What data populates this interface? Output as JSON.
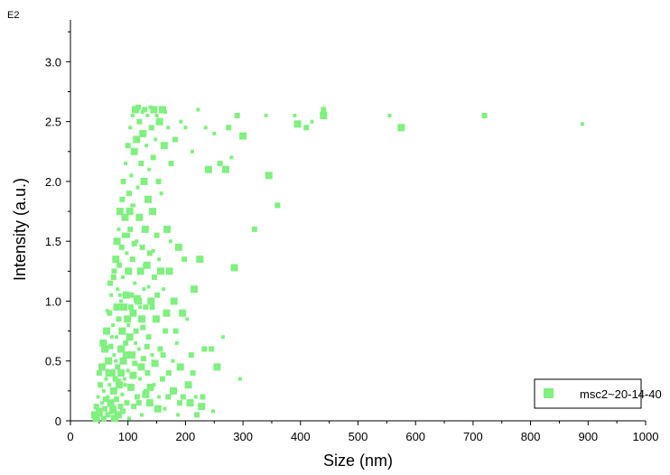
{
  "chart_data": {
    "type": "scatter",
    "xlabel": "Size (nm)",
    "ylabel": "Intensity (a.u.)",
    "y_exponent_label": "E2",
    "xlim": [
      0,
      1000
    ],
    "ylim": [
      0,
      3.35
    ],
    "x_ticks": [
      "0",
      "100",
      "200",
      "300",
      "400",
      "500",
      "600",
      "700",
      "800",
      "900",
      "1000"
    ],
    "x_tick_values": [
      0,
      100,
      200,
      300,
      400,
      500,
      600,
      700,
      800,
      900,
      1000
    ],
    "y_ticks": [
      "0",
      "0.5",
      "1.0",
      "1.5",
      "2.0",
      "2.5",
      "3.0"
    ],
    "y_tick_values": [
      0,
      0.5,
      1.0,
      1.5,
      2.0,
      2.5,
      3.0
    ],
    "grid": false,
    "legend_position": "bottom-right",
    "series": [
      {
        "name": "msc2~20-14-40",
        "color": "#80f080",
        "marker": "square",
        "points": [
          [
            42,
            0.05
          ],
          [
            45,
            0.12
          ],
          [
            48,
            0.2
          ],
          [
            50,
            0.08
          ],
          [
            52,
            0.3
          ],
          [
            55,
            0.15
          ],
          [
            55,
            0.45
          ],
          [
            58,
            0.02
          ],
          [
            58,
            0.25
          ],
          [
            60,
            0.6
          ],
          [
            60,
            0.1
          ],
          [
            62,
            0.35
          ],
          [
            63,
            0.75
          ],
          [
            65,
            0.05
          ],
          [
            65,
            0.2
          ],
          [
            66,
            0.5
          ],
          [
            68,
            0.9
          ],
          [
            68,
            0.3
          ],
          [
            70,
            0.15
          ],
          [
            70,
            0.62
          ],
          [
            71,
            1.05
          ],
          [
            72,
            0.4
          ],
          [
            73,
            0.08
          ],
          [
            74,
            0.8
          ],
          [
            75,
            0.25
          ],
          [
            75,
            1.2
          ],
          [
            76,
            0.55
          ],
          [
            77,
            0.02
          ],
          [
            78,
            0.35
          ],
          [
            78,
            0.95
          ],
          [
            79,
            1.35
          ],
          [
            80,
            0.18
          ],
          [
            80,
            0.7
          ],
          [
            81,
            1.5
          ],
          [
            82,
            0.45
          ],
          [
            82,
            1.1
          ],
          [
            83,
            0.05
          ],
          [
            84,
            0.85
          ],
          [
            84,
            1.6
          ],
          [
            85,
            0.3
          ],
          [
            85,
            1.3
          ],
          [
            86,
            0.6
          ],
          [
            86,
            1.75
          ],
          [
            87,
            0.12
          ],
          [
            88,
            1.0
          ],
          [
            88,
            0.4
          ],
          [
            89,
            1.45
          ],
          [
            90,
            0.22
          ],
          [
            90,
            0.75
          ],
          [
            90,
            1.85
          ],
          [
            91,
            1.2
          ],
          [
            92,
            0.5
          ],
          [
            92,
            2.0
          ],
          [
            93,
            0.08
          ],
          [
            93,
            0.95
          ],
          [
            94,
            1.55
          ],
          [
            95,
            0.3
          ],
          [
            95,
            1.7
          ],
          [
            96,
            0.65
          ],
          [
            96,
            2.15
          ],
          [
            97,
            1.05
          ],
          [
            98,
            0.15
          ],
          [
            98,
            1.4
          ],
          [
            99,
            0.85
          ],
          [
            100,
            2.3
          ],
          [
            100,
            0.42
          ],
          [
            101,
            1.25
          ],
          [
            102,
            1.9
          ],
          [
            102,
            0.02
          ],
          [
            103,
            0.7
          ],
          [
            104,
            1.6
          ],
          [
            104,
            2.45
          ],
          [
            105,
            0.28
          ],
          [
            106,
            1.05
          ],
          [
            106,
            2.05
          ],
          [
            107,
            0.55
          ],
          [
            108,
            1.35
          ],
          [
            108,
            2.55
          ],
          [
            109,
            0.9
          ],
          [
            110,
            0.12
          ],
          [
            110,
            1.8
          ],
          [
            111,
            2.25
          ],
          [
            112,
            0.48
          ],
          [
            112,
            1.15
          ],
          [
            113,
            2.6
          ],
          [
            114,
            0.75
          ],
          [
            115,
            1.5
          ],
          [
            115,
            2.35
          ],
          [
            116,
            0.2
          ],
          [
            117,
            1.95
          ],
          [
            118,
            1.0
          ],
          [
            118,
            2.62
          ],
          [
            119,
            0.6
          ],
          [
            120,
            1.7
          ],
          [
            120,
            2.5
          ],
          [
            121,
            0.35
          ],
          [
            122,
            1.25
          ],
          [
            123,
            2.15
          ],
          [
            124,
            0.05
          ],
          [
            124,
            0.85
          ],
          [
            125,
            1.45
          ],
          [
            125,
            2.58
          ],
          [
            126,
            2.4
          ],
          [
            127,
            0.52
          ],
          [
            128,
            1.1
          ],
          [
            128,
            2.0
          ],
          [
            129,
            2.6
          ],
          [
            130,
            0.25
          ],
          [
            130,
            1.6
          ],
          [
            131,
            0.95
          ],
          [
            132,
            2.3
          ],
          [
            133,
            1.3
          ],
          [
            134,
            0.4
          ],
          [
            134,
            2.55
          ],
          [
            135,
            1.85
          ],
          [
            136,
            0.7
          ],
          [
            137,
            2.1
          ],
          [
            138,
            0.15
          ],
          [
            138,
            1.4
          ],
          [
            139,
            2.62
          ],
          [
            140,
            1.0
          ],
          [
            141,
            2.45
          ],
          [
            142,
            0.55
          ],
          [
            143,
            1.75
          ],
          [
            144,
            2.2
          ],
          [
            145,
            0.3
          ],
          [
            145,
            2.6
          ],
          [
            146,
            1.2
          ],
          [
            148,
            2.35
          ],
          [
            149,
            0.85
          ],
          [
            150,
            1.55
          ],
          [
            150,
            2.55
          ],
          [
            152,
            0.1
          ],
          [
            153,
            2.0
          ],
          [
            154,
            1.35
          ],
          [
            155,
            2.5
          ],
          [
            156,
            0.6
          ],
          [
            158,
            1.9
          ],
          [
            160,
            2.6
          ],
          [
            160,
            0.35
          ],
          [
            162,
            1.1
          ],
          [
            163,
            2.3
          ],
          [
            165,
            0.75
          ],
          [
            165,
            2.58
          ],
          [
            168,
            1.6
          ],
          [
            170,
            0.2
          ],
          [
            170,
            2.45
          ],
          [
            172,
            1.25
          ],
          [
            175,
            2.15
          ],
          [
            178,
            0.5
          ],
          [
            180,
            1.0
          ],
          [
            182,
            2.35
          ],
          [
            185,
            0.65
          ],
          [
            188,
            1.45
          ],
          [
            190,
            0.15
          ],
          [
            192,
            2.5
          ],
          [
            195,
            0.9
          ],
          [
            198,
            1.35
          ],
          [
            200,
            2.45
          ],
          [
            205,
            0.3
          ],
          [
            210,
            0.55
          ],
          [
            212,
            2.25
          ],
          [
            215,
            1.1
          ],
          [
            220,
            0.05
          ],
          [
            222,
            2.6
          ],
          [
            225,
            1.35
          ],
          [
            230,
            0.2
          ],
          [
            235,
            2.45
          ],
          [
            240,
            2.1
          ],
          [
            245,
            0.6
          ],
          [
            250,
            2.4
          ],
          [
            255,
            0.45
          ],
          [
            260,
            2.15
          ],
          [
            265,
            0.7
          ],
          [
            270,
            2.1
          ],
          [
            275,
            2.45
          ],
          [
            280,
            2.2
          ],
          [
            285,
            1.28
          ],
          [
            290,
            2.55
          ],
          [
            295,
            0.35
          ],
          [
            300,
            2.38
          ],
          [
            320,
            1.6
          ],
          [
            340,
            2.55
          ],
          [
            345,
            2.05
          ],
          [
            360,
            1.8
          ],
          [
            390,
            2.55
          ],
          [
            395,
            2.48
          ],
          [
            410,
            2.45
          ],
          [
            420,
            2.5
          ],
          [
            440,
            2.55
          ],
          [
            440,
            2.6
          ],
          [
            555,
            2.55
          ],
          [
            575,
            2.45
          ],
          [
            720,
            2.55
          ],
          [
            890,
            2.48
          ],
          [
            45,
            0.02
          ],
          [
            50,
            0.4
          ],
          [
            53,
            0.05
          ],
          [
            57,
            0.65
          ],
          [
            61,
            0.18
          ],
          [
            64,
            0.92
          ],
          [
            67,
            0.4
          ],
          [
            69,
            1.15
          ],
          [
            72,
            0.7
          ],
          [
            74,
            0.1
          ],
          [
            76,
            1.25
          ],
          [
            79,
            0.5
          ],
          [
            81,
            0.95
          ],
          [
            83,
            0.33
          ],
          [
            86,
            1.05
          ],
          [
            88,
            0.6
          ],
          [
            91,
            0.08
          ],
          [
            94,
            0.35
          ],
          [
            97,
            0.55
          ],
          [
            99,
            1.55
          ],
          [
            101,
            0.8
          ],
          [
            103,
            1.75
          ],
          [
            105,
            0.95
          ],
          [
            107,
            1.8
          ],
          [
            109,
            0.38
          ],
          [
            111,
            1.48
          ],
          [
            113,
            0.65
          ],
          [
            116,
            1.02
          ],
          [
            119,
            0.15
          ],
          [
            121,
            0.95
          ],
          [
            123,
            0.45
          ],
          [
            126,
            0.78
          ],
          [
            129,
            1.3
          ],
          [
            131,
            0.22
          ],
          [
            133,
            0.62
          ],
          [
            136,
            1.12
          ],
          [
            139,
            0.28
          ],
          [
            142,
            0.95
          ],
          [
            144,
            1.42
          ],
          [
            147,
            0.48
          ],
          [
            151,
            1.05
          ],
          [
            154,
            0.2
          ],
          [
            157,
            1.25
          ],
          [
            161,
            0.55
          ],
          [
            164,
            0.1
          ],
          [
            167,
            0.9
          ],
          [
            171,
            0.4
          ],
          [
            174,
            1.5
          ],
          [
            179,
            0.25
          ],
          [
            183,
            0.75
          ],
          [
            187,
            0.05
          ],
          [
            191,
            0.45
          ],
          [
            196,
            0.2
          ],
          [
            203,
            0.85
          ],
          [
            208,
            0.15
          ],
          [
            213,
            0.4
          ],
          [
            218,
            0.2
          ],
          [
            228,
            0.12
          ],
          [
            233,
            0.6
          ],
          [
            248,
            0.08
          ]
        ]
      }
    ]
  }
}
